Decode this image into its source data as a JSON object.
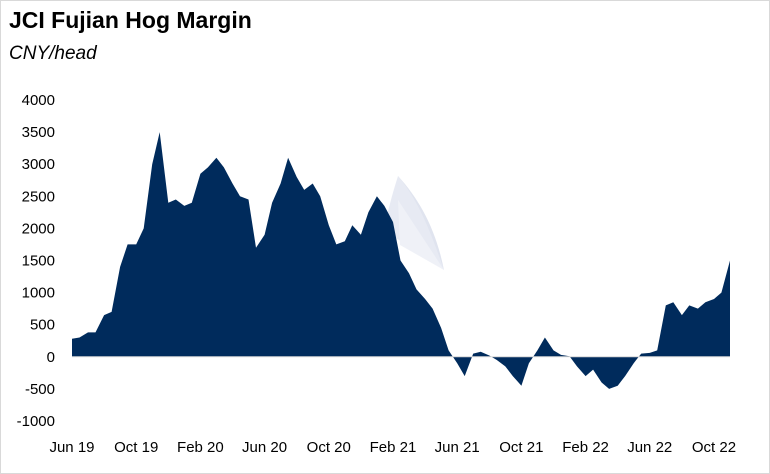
{
  "chart_data": {
    "type": "area",
    "title": "JCI Fujian Hog Margin",
    "subtitle": "CNY/head",
    "xlabel": "",
    "ylabel": "",
    "ylim": [
      -1000,
      4000
    ],
    "yticks": [
      4000,
      3500,
      3000,
      2500,
      2000,
      1500,
      1000,
      500,
      0,
      -500,
      -1000
    ],
    "xticks": [
      "Jun 19",
      "Oct 19",
      "Feb 20",
      "Jun 20",
      "Oct 20",
      "Feb 21",
      "Jun 21",
      "Oct 21",
      "Feb 22",
      "Jun 22",
      "Oct 22"
    ],
    "xrange": [
      "2019-06",
      "2022-11"
    ],
    "grid": false,
    "legend": "none",
    "fill_color": "#002b5c",
    "series": [
      {
        "x": [
          "2019-06-01",
          "2019-06-15",
          "2019-07-01",
          "2019-07-15",
          "2019-08-01",
          "2019-08-15",
          "2019-09-01",
          "2019-09-15",
          "2019-10-01",
          "2019-10-15",
          "2019-11-01",
          "2019-11-15",
          "2019-12-01",
          "2019-12-15",
          "2020-01-01",
          "2020-01-15",
          "2020-02-01",
          "2020-02-15",
          "2020-03-01",
          "2020-03-15",
          "2020-04-01",
          "2020-04-15",
          "2020-05-01",
          "2020-05-15",
          "2020-06-01",
          "2020-06-15",
          "2020-07-01",
          "2020-07-15",
          "2020-08-01",
          "2020-08-15",
          "2020-09-01",
          "2020-09-15",
          "2020-10-01",
          "2020-10-15",
          "2020-11-01",
          "2020-11-15",
          "2020-12-01",
          "2020-12-15",
          "2021-01-01",
          "2021-01-15",
          "2021-02-01",
          "2021-02-15",
          "2021-03-01",
          "2021-03-15",
          "2021-04-01",
          "2021-04-15",
          "2021-05-01",
          "2021-05-15",
          "2021-06-01",
          "2021-06-15",
          "2021-07-01",
          "2021-07-15",
          "2021-08-01",
          "2021-08-15",
          "2021-09-01",
          "2021-09-15",
          "2021-10-01",
          "2021-10-15",
          "2021-11-01",
          "2021-11-15",
          "2021-12-01",
          "2021-12-15",
          "2022-01-01",
          "2022-01-15",
          "2022-02-01",
          "2022-02-15",
          "2022-03-01",
          "2022-03-15",
          "2022-04-01",
          "2022-04-15",
          "2022-05-01",
          "2022-05-15",
          "2022-06-01",
          "2022-06-15",
          "2022-07-01",
          "2022-07-15",
          "2022-08-01",
          "2022-08-15",
          "2022-09-01",
          "2022-09-15",
          "2022-10-01",
          "2022-10-15",
          "2022-11-01"
        ],
        "values": [
          280,
          300,
          380,
          380,
          650,
          700,
          1400,
          1750,
          1750,
          2000,
          3000,
          3500,
          2400,
          2450,
          2350,
          2400,
          2850,
          2950,
          3100,
          2950,
          2700,
          2500,
          2450,
          1700,
          1900,
          2400,
          2700,
          3100,
          2800,
          2600,
          2700,
          2500,
          2050,
          1750,
          1800,
          2050,
          1900,
          2250,
          2500,
          2350,
          2100,
          1500,
          1300,
          1050,
          900,
          750,
          450,
          100,
          -100,
          -300,
          50,
          80,
          20,
          -50,
          -150,
          -300,
          -450,
          -100,
          100,
          300,
          100,
          30,
          10,
          -150,
          -300,
          -200,
          -400,
          -500,
          -450,
          -300,
          -100,
          50,
          60,
          100,
          800,
          850,
          650,
          800,
          750,
          850,
          900,
          1000,
          1500
        ]
      }
    ]
  }
}
